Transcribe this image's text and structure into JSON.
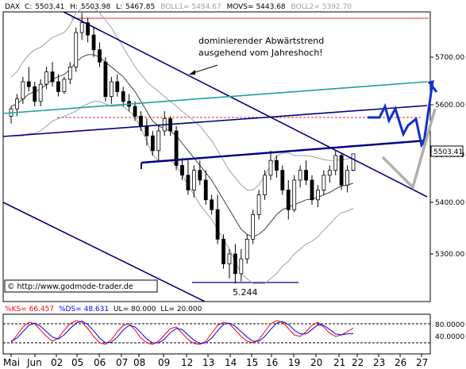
{
  "chart_data": [
    {
      "type": "candlestick",
      "header": {
        "symbol": "DAX",
        "items": [
          {
            "label": "C:",
            "value": "5503.41",
            "color": "#000000"
          },
          {
            "label": "H:",
            "value": "5503.98",
            "color": "#000000"
          },
          {
            "label": "L:",
            "value": "5467.85",
            "color": "#000000"
          },
          {
            "label": "BOLL1=",
            "value": "5494.67",
            "color": "#a0a0a0"
          },
          {
            "label": "MOVS=",
            "value": "5443.68",
            "color": "#000000"
          },
          {
            "label": "BOLL2=",
            "value": "5392.70",
            "color": "#a0a0a0"
          }
        ]
      },
      "y_ticks": [
        5300,
        5400,
        5500,
        5600,
        5700
      ],
      "y_tick_labels": [
        "5300.00",
        "5400.00",
        "5500.00",
        "5600.00",
        "5700.00"
      ],
      "last_price_label": "5503.41",
      "x_tick_labels": [
        "Mai",
        "Jun",
        "02",
        "05",
        "06",
        "07",
        "08",
        "09",
        "12",
        "13",
        "14",
        "15",
        "16",
        "19",
        "20",
        "21",
        "22",
        "23",
        "26",
        "27"
      ],
      "ohlc": [
        [
          5580,
          5600,
          5565,
          5595
        ],
        [
          5595,
          5625,
          5580,
          5615
        ],
        [
          5615,
          5660,
          5605,
          5650
        ],
        [
          5650,
          5680,
          5630,
          5640
        ],
        [
          5640,
          5650,
          5600,
          5610
        ],
        [
          5610,
          5655,
          5600,
          5645
        ],
        [
          5645,
          5680,
          5635,
          5670
        ],
        [
          5670,
          5690,
          5640,
          5650
        ],
        [
          5650,
          5665,
          5620,
          5630
        ],
        [
          5630,
          5660,
          5625,
          5655
        ],
        [
          5655,
          5690,
          5645,
          5680
        ],
        [
          5680,
          5760,
          5670,
          5750
        ],
        [
          5750,
          5790,
          5735,
          5770
        ],
        [
          5770,
          5780,
          5730,
          5745
        ],
        [
          5745,
          5760,
          5700,
          5715
        ],
        [
          5715,
          5730,
          5680,
          5690
        ],
        [
          5690,
          5700,
          5610,
          5620
        ],
        [
          5620,
          5660,
          5605,
          5650
        ],
        [
          5650,
          5665,
          5620,
          5630
        ],
        [
          5630,
          5640,
          5600,
          5610
        ],
        [
          5610,
          5625,
          5590,
          5600
        ],
        [
          5600,
          5610,
          5570,
          5580
        ],
        [
          5580,
          5590,
          5550,
          5560
        ],
        [
          5560,
          5575,
          5520,
          5540
        ],
        [
          5540,
          5550,
          5500,
          5510
        ],
        [
          5510,
          5560,
          5490,
          5550
        ],
        [
          5550,
          5590,
          5540,
          5575
        ],
        [
          5575,
          5580,
          5540,
          5550
        ],
        [
          5550,
          5560,
          5470,
          5480
        ],
        [
          5480,
          5495,
          5450,
          5460
        ],
        [
          5460,
          5490,
          5420,
          5430
        ],
        [
          5430,
          5480,
          5415,
          5470
        ],
        [
          5470,
          5490,
          5440,
          5450
        ],
        [
          5450,
          5470,
          5400,
          5410
        ],
        [
          5410,
          5420,
          5380,
          5390
        ],
        [
          5390,
          5420,
          5320,
          5330
        ],
        [
          5330,
          5340,
          5270,
          5280
        ],
        [
          5280,
          5310,
          5250,
          5300
        ],
        [
          5300,
          5320,
          5240,
          5260
        ],
        [
          5260,
          5310,
          5244,
          5290
        ],
        [
          5290,
          5340,
          5280,
          5330
        ],
        [
          5330,
          5390,
          5320,
          5380
        ],
        [
          5380,
          5430,
          5370,
          5420
        ],
        [
          5420,
          5470,
          5410,
          5460
        ],
        [
          5460,
          5510,
          5450,
          5490
        ],
        [
          5490,
          5500,
          5455,
          5470
        ],
        [
          5470,
          5480,
          5420,
          5430
        ],
        [
          5430,
          5450,
          5370,
          5390
        ],
        [
          5390,
          5460,
          5385,
          5450
        ],
        [
          5450,
          5480,
          5435,
          5470
        ],
        [
          5470,
          5490,
          5440,
          5450
        ],
        [
          5450,
          5460,
          5400,
          5410
        ],
        [
          5410,
          5440,
          5395,
          5430
        ],
        [
          5430,
          5470,
          5420,
          5460
        ],
        [
          5460,
          5480,
          5445,
          5470
        ],
        [
          5470,
          5510,
          5460,
          5500
        ],
        [
          5500,
          5505,
          5430,
          5440
        ],
        [
          5440,
          5480,
          5425,
          5470
        ],
        [
          5470,
          5503.98,
          5467.85,
          5503.41
        ]
      ],
      "movs": [
        5600,
        5605,
        5615,
        5625,
        5630,
        5635,
        5645,
        5655,
        5660,
        5665,
        5675,
        5690,
        5700,
        5705,
        5705,
        5700,
        5690,
        5680,
        5670,
        5660,
        5645,
        5630,
        5610,
        5590,
        5570,
        5560,
        5555,
        5550,
        5540,
        5525,
        5510,
        5495,
        5480,
        5465,
        5450,
        5430,
        5410,
        5390,
        5370,
        5350,
        5340,
        5335,
        5340,
        5350,
        5365,
        5380,
        5390,
        5395,
        5400,
        5405,
        5410,
        5412,
        5415,
        5420,
        5425,
        5432,
        5438,
        5440,
        5443.68
      ],
      "boll1": [
        5660,
        5670,
        5690,
        5705,
        5715,
        5720,
        5730,
        5740,
        5745,
        5750,
        5765,
        5790,
        5800,
        5805,
        5800,
        5790,
        5775,
        5760,
        5740,
        5720,
        5700,
        5680,
        5665,
        5650,
        5640,
        5630,
        5620,
        5610,
        5600,
        5590,
        5580,
        5570,
        5560,
        5545,
        5530,
        5510,
        5490,
        5470,
        5455,
        5440,
        5430,
        5430,
        5440,
        5460,
        5480,
        5500,
        5505,
        5505,
        5500,
        5500,
        5500,
        5498,
        5495,
        5492,
        5490,
        5490,
        5492,
        5493,
        5494.67
      ],
      "boll2": [
        5540,
        5540,
        5540,
        5545,
        5545,
        5550,
        5560,
        5570,
        5575,
        5580,
        5585,
        5590,
        5600,
        5605,
        5610,
        5610,
        5605,
        5600,
        5600,
        5600,
        5590,
        5580,
        5555,
        5530,
        5500,
        5490,
        5490,
        5490,
        5480,
        5460,
        5440,
        5420,
        5400,
        5385,
        5370,
        5350,
        5330,
        5310,
        5285,
        5260,
        5250,
        5240,
        5240,
        5240,
        5250,
        5260,
        5275,
        5285,
        5300,
        5310,
        5320,
        5326,
        5335,
        5348,
        5360,
        5374,
        5384,
        5387,
        5392.7
      ],
      "annotation_text": [
        "dominierender Abwärtstrend",
        "ausgehend vom Jahreshoch!"
      ],
      "low_label": "5.244",
      "copyright": "© http://www.godmode-trader.de",
      "stoch": {
        "header": [
          {
            "label": "%KS=",
            "value": "66.457",
            "color": "#ff0000"
          },
          {
            "label": "%DS=",
            "value": "48.631",
            "color": "#0000ff"
          },
          {
            "label": "UL=",
            "value": "80.000",
            "color": "#000000"
          },
          {
            "label": "LL=",
            "value": "20.000",
            "color": "#000000"
          }
        ],
        "y_tick_labels": [
          "80.0000",
          "40.0000"
        ],
        "ul": 80,
        "ll": 20,
        "ks": [
          20,
          45,
          70,
          85,
          80,
          60,
          40,
          25,
          35,
          60,
          80,
          90,
          85,
          65,
          40,
          20,
          15,
          30,
          55,
          75,
          80,
          60,
          35,
          20,
          15,
          25,
          45,
          65,
          70,
          50,
          30,
          18,
          15,
          25,
          50,
          75,
          85,
          80,
          60,
          40,
          25,
          20,
          30,
          55,
          80,
          90,
          85,
          65,
          45,
          40,
          55,
          75,
          85,
          70,
          50,
          40,
          45,
          55,
          66.457
        ],
        "ds": [
          25,
          35,
          55,
          75,
          82,
          72,
          55,
          38,
          32,
          45,
          65,
          82,
          88,
          78,
          58,
          35,
          20,
          22,
          38,
          60,
          75,
          70,
          52,
          32,
          20,
          20,
          32,
          52,
          65,
          62,
          45,
          28,
          18,
          20,
          35,
          58,
          78,
          82,
          72,
          55,
          38,
          25,
          25,
          40,
          62,
          82,
          87,
          78,
          60,
          48,
          48,
          62,
          77,
          75,
          62,
          48,
          45,
          48,
          48.631
        ]
      }
    }
  ]
}
